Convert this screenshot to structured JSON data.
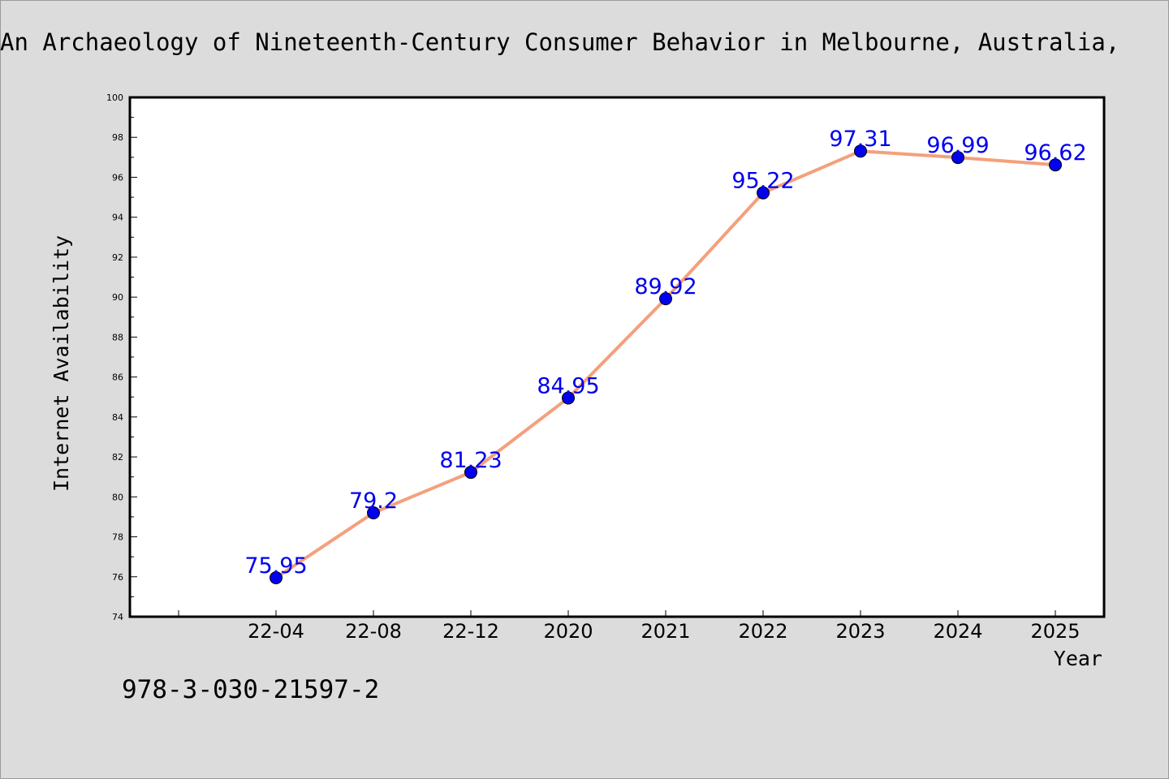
{
  "page": {
    "title": "An Archaeology of Nineteenth-Century Consumer Behavior in Melbourne, Australia,",
    "isbn": "978-3-030-21597-2"
  },
  "chart_data": {
    "type": "line",
    "title": "An Archaeology of Nineteenth-Century Consumer Behavior in Melbourne, Australia,",
    "xlabel": "Year",
    "ylabel": "Internet Availability",
    "categories": [
      "22-04",
      "22-08",
      "22-12",
      "2020",
      "2021",
      "2022",
      "2023",
      "2024",
      "2025"
    ],
    "series": [
      {
        "values": [
          75.95,
          79.2,
          81.23,
          84.95,
          89.92,
          95.22,
          97.31,
          96.99,
          96.62
        ],
        "data_labels": [
          "75.95",
          "79.2",
          "81.23",
          "84.95",
          "89.92",
          "95.22",
          "97.31",
          "96.99",
          "96.62"
        ]
      }
    ],
    "ylim": [
      74,
      100
    ],
    "yticks": [
      "74",
      "76",
      "78",
      "80",
      "82",
      "84",
      "86",
      "88",
      "90",
      "92",
      "94",
      "96",
      "98",
      "100"
    ],
    "grid": false,
    "legend": "none",
    "colors": {
      "line": "#f4a07c",
      "marker": "#0000ee",
      "label": "#0000ee",
      "background": "#dcdcdc",
      "plot_area": "#ffffff"
    }
  }
}
